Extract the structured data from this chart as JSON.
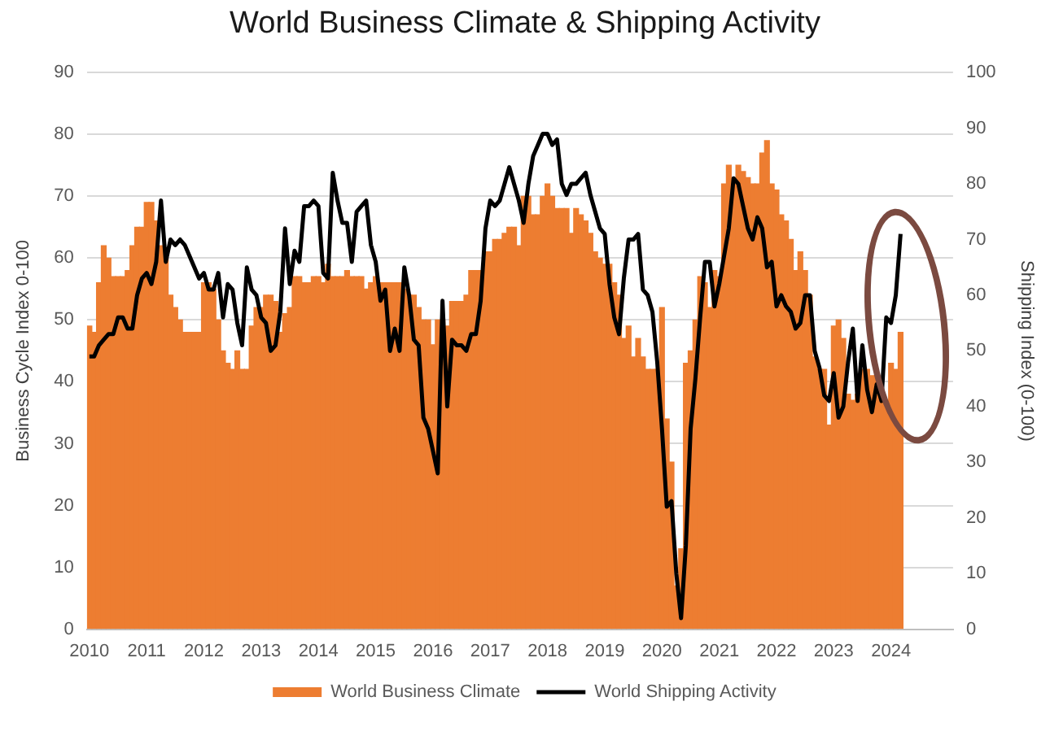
{
  "chart_data": {
    "type": "bar",
    "title": "World Business Climate & Shipping Activity",
    "ylabel": "Business Cycle Index 0-100",
    "y2label": "Shipping Index (0-100)",
    "x": [
      "2010-01",
      "2010-02",
      "2010-03",
      "2010-04",
      "2010-05",
      "2010-06",
      "2010-07",
      "2010-08",
      "2010-09",
      "2010-10",
      "2010-11",
      "2010-12",
      "2011-01",
      "2011-02",
      "2011-03",
      "2011-04",
      "2011-05",
      "2011-06",
      "2011-07",
      "2011-08",
      "2011-09",
      "2011-10",
      "2011-11",
      "2011-12",
      "2012-01",
      "2012-02",
      "2012-03",
      "2012-04",
      "2012-05",
      "2012-06",
      "2012-07",
      "2012-08",
      "2012-09",
      "2012-10",
      "2012-11",
      "2012-12",
      "2013-01",
      "2013-02",
      "2013-03",
      "2013-04",
      "2013-05",
      "2013-06",
      "2013-07",
      "2013-08",
      "2013-09",
      "2013-10",
      "2013-11",
      "2013-12",
      "2014-01",
      "2014-02",
      "2014-03",
      "2014-04",
      "2014-05",
      "2014-06",
      "2014-07",
      "2014-08",
      "2014-09",
      "2014-10",
      "2014-11",
      "2014-12",
      "2015-01",
      "2015-02",
      "2015-03",
      "2015-04",
      "2015-05",
      "2015-06",
      "2015-07",
      "2015-08",
      "2015-09",
      "2015-10",
      "2015-11",
      "2015-12",
      "2016-01",
      "2016-02",
      "2016-03",
      "2016-04",
      "2016-05",
      "2016-06",
      "2016-07",
      "2016-08",
      "2016-09",
      "2016-10",
      "2016-11",
      "2016-12",
      "2017-01",
      "2017-02",
      "2017-03",
      "2017-04",
      "2017-05",
      "2017-06",
      "2017-07",
      "2017-08",
      "2017-09",
      "2017-10",
      "2017-11",
      "2017-12",
      "2018-01",
      "2018-02",
      "2018-03",
      "2018-04",
      "2018-05",
      "2018-06",
      "2018-07",
      "2018-08",
      "2018-09",
      "2018-10",
      "2018-11",
      "2018-12",
      "2019-01",
      "2019-02",
      "2019-03",
      "2019-04",
      "2019-05",
      "2019-06",
      "2019-07",
      "2019-08",
      "2019-09",
      "2019-10",
      "2019-11",
      "2019-12",
      "2020-01",
      "2020-02",
      "2020-03",
      "2020-04",
      "2020-05",
      "2020-06",
      "2020-07",
      "2020-08",
      "2020-09",
      "2020-10",
      "2020-11",
      "2020-12",
      "2021-01",
      "2021-02",
      "2021-03",
      "2021-04",
      "2021-05",
      "2021-06",
      "2021-07",
      "2021-08",
      "2021-09",
      "2021-10",
      "2021-11",
      "2021-12",
      "2022-01",
      "2022-02",
      "2022-03",
      "2022-04",
      "2022-05",
      "2022-06",
      "2022-07",
      "2022-08",
      "2022-09",
      "2022-10",
      "2022-11",
      "2022-12",
      "2023-01",
      "2023-02",
      "2023-03",
      "2023-04",
      "2023-05",
      "2023-06",
      "2023-07",
      "2023-08",
      "2023-09",
      "2023-10",
      "2023-11",
      "2023-12",
      "2024-01",
      "2024-02",
      "2024-03"
    ],
    "xlim": [
      "2009-12-16",
      "2025-02"
    ],
    "xticks": [
      "2010",
      "2011",
      "2012",
      "2013",
      "2014",
      "2015",
      "2016",
      "2017",
      "2018",
      "2019",
      "2020",
      "2021",
      "2022",
      "2023",
      "2024"
    ],
    "ylim": [
      0,
      90
    ],
    "yticks": [
      0,
      10,
      20,
      30,
      40,
      50,
      60,
      70,
      80,
      90
    ],
    "y2lim": [
      0,
      100
    ],
    "y2ticks": [
      0,
      10,
      20,
      30,
      40,
      50,
      60,
      70,
      80,
      90,
      100
    ],
    "grid": "y",
    "legend": "bottom",
    "marker": "none",
    "series": [
      {
        "name": "World Business Climate",
        "color": "#ed7d31",
        "values": [
          49,
          48,
          56,
          62,
          60,
          57,
          57,
          57,
          58,
          62,
          65,
          65,
          69,
          69,
          66,
          62,
          60,
          54,
          52,
          50,
          48,
          48,
          48,
          48,
          56,
          56,
          55,
          50,
          45,
          43,
          42,
          45,
          42,
          42,
          49,
          52,
          52,
          54,
          54,
          53,
          48,
          51,
          52,
          57,
          57,
          56,
          56,
          57,
          57,
          56,
          59,
          57,
          57,
          57,
          58,
          57,
          57,
          57,
          55,
          56,
          57,
          56,
          56,
          56,
          56,
          56,
          55,
          54,
          54,
          52,
          50,
          50,
          46,
          50,
          50,
          49,
          53,
          53,
          53,
          54,
          58,
          58,
          58,
          61,
          61,
          63,
          63,
          64,
          65,
          65,
          62,
          70,
          70,
          67,
          67,
          70,
          72,
          70,
          68,
          68,
          68,
          64,
          68,
          67,
          66,
          64,
          61,
          60,
          59,
          59,
          56,
          54,
          47,
          49,
          44,
          47,
          44,
          42,
          42,
          42,
          52,
          34,
          27,
          7,
          13,
          43,
          45,
          50,
          57,
          56,
          52,
          58,
          57,
          72,
          75,
          72,
          75,
          74,
          73,
          72,
          72,
          77,
          79,
          72,
          71,
          67,
          66,
          63,
          58,
          61,
          58,
          54,
          44,
          42,
          42,
          33,
          49,
          50,
          47,
          38,
          37,
          38,
          42,
          42,
          41,
          41,
          37,
          37,
          43,
          42,
          48
        ]
      },
      {
        "name": "World Shipping Activity",
        "type": "line",
        "axis": "y2",
        "color": "#000000",
        "values": [
          49,
          49,
          51,
          52,
          53,
          53,
          56,
          56,
          54,
          54,
          60,
          63,
          64,
          62,
          66,
          77,
          66,
          70,
          69,
          70,
          69,
          67,
          65,
          63,
          64,
          61,
          61,
          64,
          56,
          62,
          61,
          55,
          51,
          65,
          61,
          60,
          56,
          55,
          50,
          51,
          57,
          72,
          62,
          68,
          66,
          76,
          76,
          77,
          76,
          64,
          63,
          82,
          77,
          73,
          73,
          66,
          75,
          76,
          77,
          69,
          66,
          59,
          61,
          50,
          54,
          50,
          65,
          60,
          52,
          51,
          38,
          36,
          32,
          28,
          59,
          40,
          52,
          51,
          51,
          50,
          53,
          53,
          59,
          72,
          77,
          76,
          77,
          80,
          83,
          80,
          77,
          73,
          80,
          85,
          87,
          89,
          89,
          87,
          88,
          80,
          78,
          80,
          80,
          81,
          82,
          78,
          75,
          72,
          71,
          62,
          56,
          53,
          63,
          70,
          70,
          71,
          61,
          60,
          57,
          48,
          36,
          22,
          23,
          10,
          2,
          15,
          36,
          45,
          56,
          66,
          66,
          58,
          62,
          67,
          72,
          81,
          80,
          76,
          72,
          70,
          74,
          72,
          65,
          66,
          58,
          60,
          58,
          57,
          54,
          55,
          60,
          60,
          50,
          47,
          42,
          41,
          46,
          38,
          40,
          48,
          54,
          41,
          51,
          43,
          39,
          44,
          41,
          56,
          55,
          60,
          71
        ]
      }
    ]
  }
}
